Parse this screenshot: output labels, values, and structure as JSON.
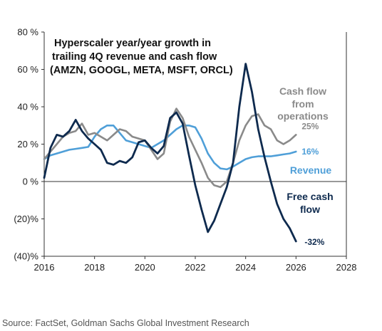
{
  "chart_data": {
    "type": "line",
    "title_lines": [
      "Hyperscaler year/year growth in",
      "trailing 4Q revenue and cash flow",
      "(AMZN, GOOGL, META, MSFT, ORCL)"
    ],
    "xlim": [
      2016,
      2028
    ],
    "ylim": [
      -40,
      80
    ],
    "x_ticks": [
      2016,
      2018,
      2020,
      2022,
      2024,
      2026,
      2028
    ],
    "y_ticks": [
      {
        "value": 80,
        "label": "80 %"
      },
      {
        "value": 60,
        "label": "60 %"
      },
      {
        "value": 40,
        "label": "40 %"
      },
      {
        "value": 20,
        "label": "20 %"
      },
      {
        "value": 0,
        "label": "0 %"
      },
      {
        "value": -20,
        "label": "(20)%"
      },
      {
        "value": -40,
        "label": "(40)%"
      }
    ],
    "grid": false,
    "series": [
      {
        "name": "Revenue",
        "label_lines": [
          "Revenue"
        ],
        "end_label": "16%",
        "color": "#4f9fd8",
        "x": [
          2016.0,
          2016.25,
          2016.5,
          2016.75,
          2017.0,
          2017.25,
          2017.5,
          2017.75,
          2018.0,
          2018.25,
          2018.5,
          2018.75,
          2019.0,
          2019.25,
          2019.5,
          2019.75,
          2020.0,
          2020.25,
          2020.5,
          2020.75,
          2021.0,
          2021.25,
          2021.5,
          2021.75,
          2022.0,
          2022.25,
          2022.5,
          2022.75,
          2023.0,
          2023.25,
          2023.5,
          2023.75,
          2024.0,
          2024.25,
          2024.5,
          2024.75,
          2025.0,
          2025.25,
          2025.5,
          2025.75,
          2026.0
        ],
        "y": [
          12,
          14,
          15,
          16,
          17,
          17.5,
          18,
          18.5,
          24,
          28,
          30,
          30,
          26,
          22,
          21,
          20,
          19,
          18,
          20,
          22,
          25,
          28,
          30,
          30,
          29,
          23,
          15,
          10,
          7,
          6.5,
          8,
          10,
          12,
          13,
          13.5,
          13.5,
          13.5,
          14,
          14.5,
          15,
          16
        ]
      },
      {
        "name": "Cash flow from operations",
        "label_lines": [
          "Cash flow",
          "from",
          "operations"
        ],
        "end_label": "25%",
        "color": "#8a8a8a",
        "x": [
          2016.0,
          2016.25,
          2016.5,
          2016.75,
          2017.0,
          2017.25,
          2017.5,
          2017.75,
          2018.0,
          2018.25,
          2018.5,
          2018.75,
          2019.0,
          2019.25,
          2019.5,
          2019.75,
          2020.0,
          2020.25,
          2020.5,
          2020.75,
          2021.0,
          2021.25,
          2021.5,
          2021.75,
          2022.0,
          2022.25,
          2022.5,
          2022.75,
          2023.0,
          2023.25,
          2023.5,
          2023.75,
          2024.0,
          2024.25,
          2024.5,
          2024.75,
          2025.0,
          2025.25,
          2025.5,
          2025.75,
          2026.0
        ],
        "y": [
          12,
          16,
          20,
          24,
          26,
          27,
          31,
          25,
          26,
          24,
          22,
          25,
          28,
          27,
          24,
          23,
          22,
          17,
          12,
          15,
          32,
          39,
          34,
          24,
          17,
          10,
          2,
          -2,
          -3,
          0,
          10,
          22,
          30,
          35,
          36,
          30,
          28,
          22,
          20,
          22,
          25
        ]
      },
      {
        "name": "Free cash flow",
        "label_lines": [
          "Free cash",
          "flow"
        ],
        "end_label": "-32%",
        "color": "#0e2a4e",
        "x": [
          2016.0,
          2016.25,
          2016.5,
          2016.75,
          2017.0,
          2017.25,
          2017.5,
          2017.75,
          2018.0,
          2018.25,
          2018.5,
          2018.75,
          2019.0,
          2019.25,
          2019.5,
          2019.75,
          2020.0,
          2020.25,
          2020.5,
          2020.75,
          2021.0,
          2021.25,
          2021.5,
          2021.75,
          2022.0,
          2022.25,
          2022.5,
          2022.75,
          2023.0,
          2023.25,
          2023.5,
          2023.75,
          2024.0,
          2024.25,
          2024.5,
          2024.75,
          2025.0,
          2025.25,
          2025.5,
          2025.75,
          2026.0
        ],
        "y": [
          2,
          18,
          25,
          24,
          27,
          33,
          27,
          23,
          20,
          17,
          10,
          9,
          11,
          10,
          13,
          21,
          22,
          18,
          15,
          19,
          34,
          37,
          31,
          14,
          -2,
          -15,
          -27,
          -21,
          -12,
          -3,
          10,
          40,
          63,
          48,
          28,
          13,
          0,
          -12,
          -20,
          -25,
          -32
        ]
      }
    ]
  },
  "source": "Source: FactSet, Goldman Sachs Global Investment Research"
}
